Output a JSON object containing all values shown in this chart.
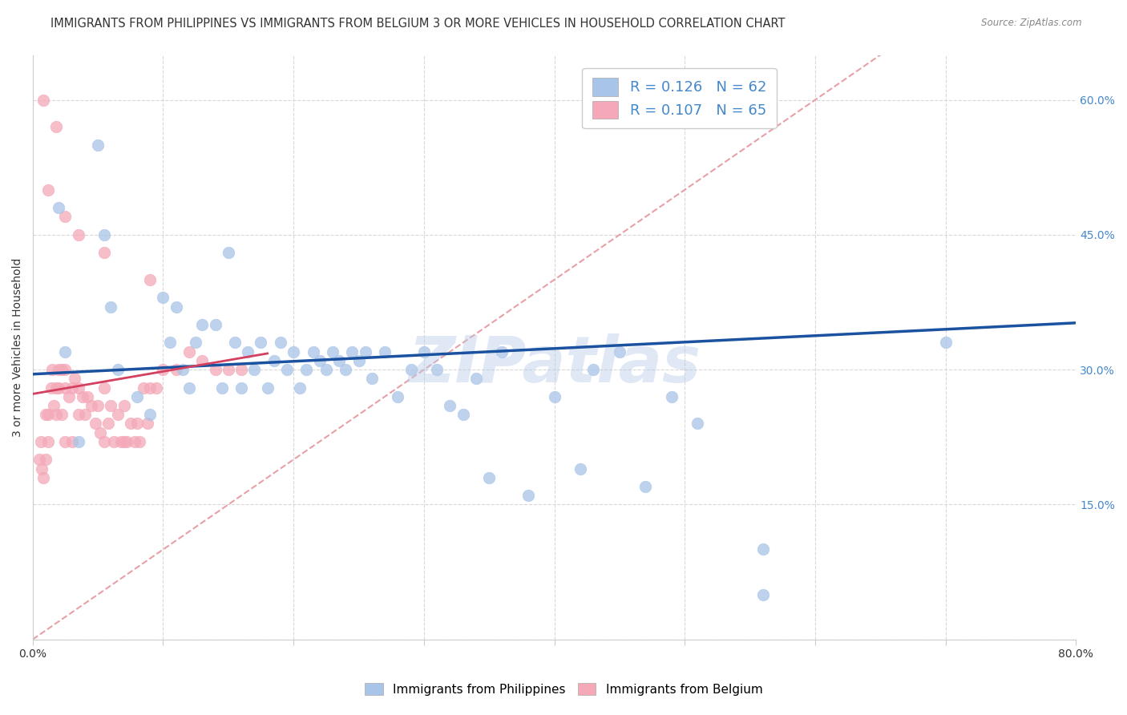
{
  "title": "IMMIGRANTS FROM PHILIPPINES VS IMMIGRANTS FROM BELGIUM 3 OR MORE VEHICLES IN HOUSEHOLD CORRELATION CHART",
  "source": "Source: ZipAtlas.com",
  "ylabel": "3 or more Vehicles in Household",
  "xlim": [
    0.0,
    0.8
  ],
  "ylim": [
    0.0,
    0.65
  ],
  "xtick_vals": [
    0.0,
    0.1,
    0.2,
    0.3,
    0.4,
    0.5,
    0.6,
    0.7,
    0.8
  ],
  "xtick_labels": [
    "0.0%",
    "",
    "",
    "",
    "",
    "",
    "",
    "",
    "80.0%"
  ],
  "ytick_vals": [
    0.0,
    0.15,
    0.3,
    0.45,
    0.6
  ],
  "ytick_labels_right": [
    "",
    "15.0%",
    "30.0%",
    "45.0%",
    "60.0%"
  ],
  "scatter_blue_color": "#a8c4e8",
  "scatter_pink_color": "#f4a8b8",
  "line_blue_color": "#1a52a0",
  "line_pink_color": "#d44060",
  "diagonal_color": "#e8a0a8",
  "watermark": "ZIPatlas",
  "watermark_color": "#b8cce8",
  "watermark_alpha": 0.45,
  "background_color": "#ffffff",
  "grid_color": "#d8d8d8",
  "title_color": "#333333",
  "right_tick_color": "#4488cc",
  "legend_text_color": "#4488cc",
  "legend_R1": "R = 0.126",
  "legend_N1": "N = 62",
  "legend_R2": "R = 0.107",
  "legend_N2": "N = 65",
  "blue_line_x0": 0.0,
  "blue_line_y0": 0.295,
  "blue_line_x1": 0.8,
  "blue_line_y1": 0.352,
  "pink_line_x0": 0.0,
  "pink_line_y0": 0.273,
  "pink_line_x1": 0.18,
  "pink_line_y1": 0.318,
  "philippines_x": [
    0.02,
    0.025,
    0.035,
    0.05,
    0.055,
    0.06,
    0.065,
    0.08,
    0.09,
    0.1,
    0.105,
    0.11,
    0.115,
    0.12,
    0.125,
    0.13,
    0.14,
    0.145,
    0.15,
    0.155,
    0.16,
    0.165,
    0.17,
    0.175,
    0.18,
    0.185,
    0.19,
    0.195,
    0.2,
    0.205,
    0.21,
    0.215,
    0.22,
    0.225,
    0.23,
    0.235,
    0.24,
    0.245,
    0.25,
    0.255,
    0.26,
    0.27,
    0.28,
    0.29,
    0.3,
    0.31,
    0.32,
    0.33,
    0.34,
    0.35,
    0.36,
    0.38,
    0.4,
    0.42,
    0.43,
    0.45,
    0.47,
    0.49,
    0.51,
    0.56,
    0.7,
    0.56
  ],
  "philippines_y": [
    0.48,
    0.32,
    0.22,
    0.55,
    0.45,
    0.37,
    0.3,
    0.27,
    0.25,
    0.38,
    0.33,
    0.37,
    0.3,
    0.28,
    0.33,
    0.35,
    0.35,
    0.28,
    0.43,
    0.33,
    0.28,
    0.32,
    0.3,
    0.33,
    0.28,
    0.31,
    0.33,
    0.3,
    0.32,
    0.28,
    0.3,
    0.32,
    0.31,
    0.3,
    0.32,
    0.31,
    0.3,
    0.32,
    0.31,
    0.32,
    0.29,
    0.32,
    0.27,
    0.3,
    0.32,
    0.3,
    0.26,
    0.25,
    0.29,
    0.18,
    0.32,
    0.16,
    0.27,
    0.19,
    0.3,
    0.32,
    0.17,
    0.27,
    0.24,
    0.1,
    0.33,
    0.05
  ],
  "belgium_x": [
    0.005,
    0.006,
    0.007,
    0.008,
    0.01,
    0.01,
    0.012,
    0.012,
    0.014,
    0.015,
    0.016,
    0.018,
    0.018,
    0.02,
    0.02,
    0.022,
    0.022,
    0.025,
    0.025,
    0.025,
    0.028,
    0.03,
    0.03,
    0.032,
    0.035,
    0.035,
    0.038,
    0.04,
    0.042,
    0.045,
    0.048,
    0.05,
    0.052,
    0.055,
    0.055,
    0.058,
    0.06,
    0.062,
    0.065,
    0.068,
    0.07,
    0.07,
    0.072,
    0.075,
    0.078,
    0.08,
    0.082,
    0.085,
    0.088,
    0.09,
    0.095,
    0.1,
    0.11,
    0.12,
    0.13,
    0.14,
    0.15,
    0.16,
    0.018,
    0.025,
    0.008,
    0.012,
    0.035,
    0.055,
    0.09
  ],
  "belgium_y": [
    0.2,
    0.22,
    0.19,
    0.18,
    0.25,
    0.2,
    0.25,
    0.22,
    0.28,
    0.3,
    0.26,
    0.25,
    0.28,
    0.28,
    0.3,
    0.3,
    0.25,
    0.3,
    0.28,
    0.22,
    0.27,
    0.28,
    0.22,
    0.29,
    0.28,
    0.25,
    0.27,
    0.25,
    0.27,
    0.26,
    0.24,
    0.26,
    0.23,
    0.28,
    0.22,
    0.24,
    0.26,
    0.22,
    0.25,
    0.22,
    0.26,
    0.22,
    0.22,
    0.24,
    0.22,
    0.24,
    0.22,
    0.28,
    0.24,
    0.28,
    0.28,
    0.3,
    0.3,
    0.32,
    0.31,
    0.3,
    0.3,
    0.3,
    0.57,
    0.47,
    0.6,
    0.5,
    0.45,
    0.43,
    0.4
  ],
  "marker_size": 110,
  "title_fontsize": 10.5,
  "label_fontsize": 10,
  "tick_fontsize": 10,
  "legend_fontsize": 13
}
